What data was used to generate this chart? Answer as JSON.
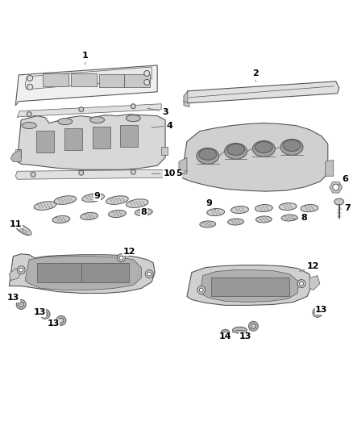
{
  "background_color": "#ffffff",
  "line_color": "#555555",
  "fig_width": 4.38,
  "fig_height": 5.33,
  "dpi": 100
}
